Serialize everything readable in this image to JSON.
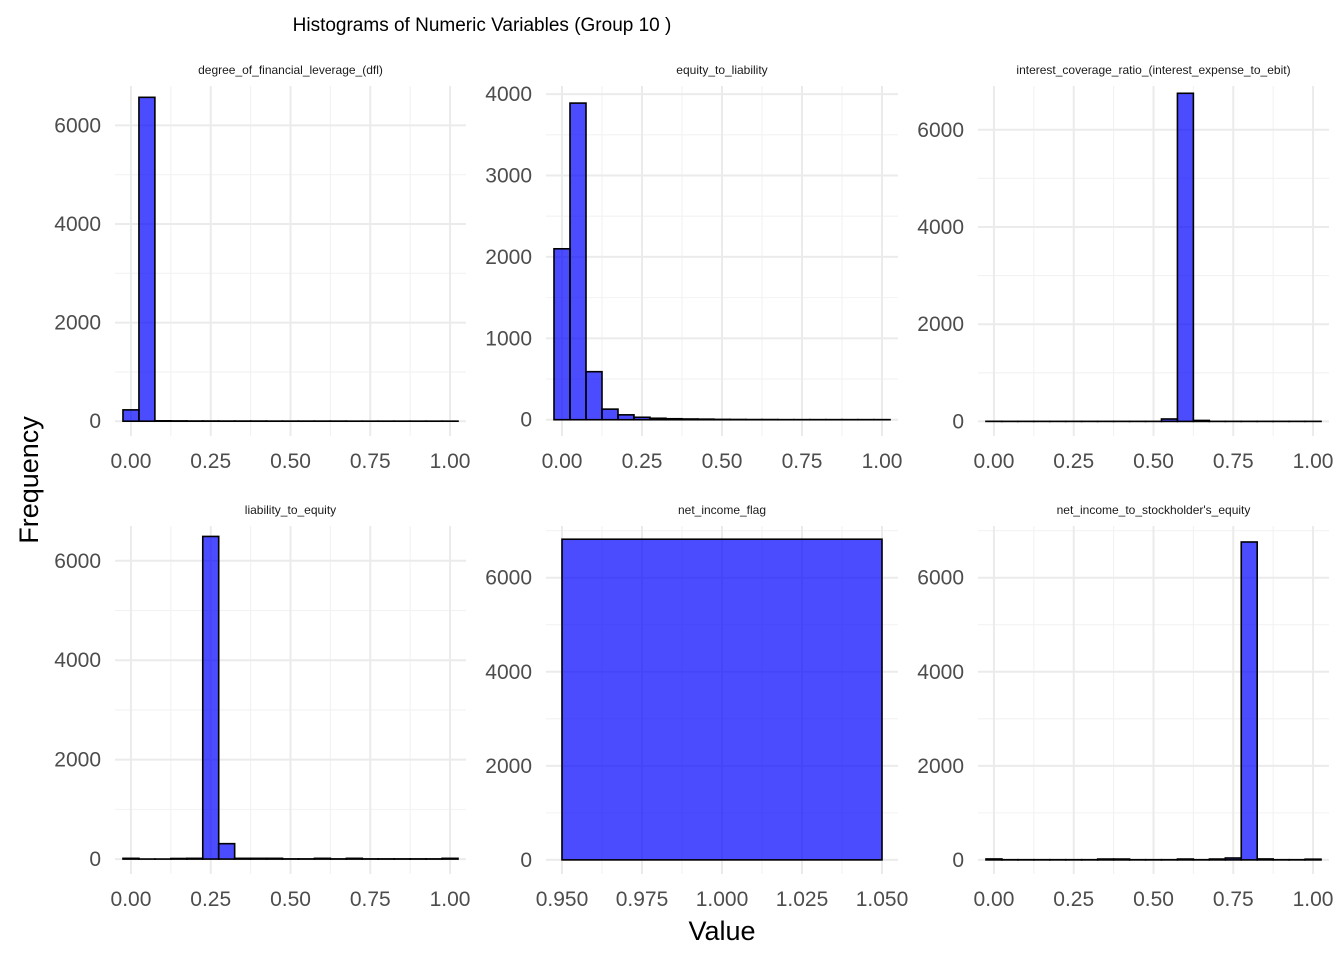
{
  "chart_data": {
    "type": "bar",
    "title": "Histograms of Numeric Variables (Group 10 )",
    "xlabel": "Value",
    "ylabel": "Frequency",
    "grid": true,
    "legend": "none",
    "bar_color": "#0000ff",
    "bar_opacity": 0.7,
    "bar_outline": "#000000",
    "panels": [
      {
        "name": "degree_of_financial_leverage_(dfl)",
        "bin_start": -0.025,
        "bin_width": 0.05,
        "counts": [
          230,
          6570,
          8,
          6,
          4,
          4,
          3,
          3,
          3,
          2,
          2,
          2,
          2,
          2,
          1,
          1,
          1,
          1,
          1,
          1,
          1
        ],
        "xlim": [
          -0.05,
          1.05
        ],
        "ylim": [
          -300,
          6800
        ],
        "xticks": [
          0,
          0.25,
          0.5,
          0.75,
          1
        ],
        "xtick_labels": [
          "0.00",
          "0.25",
          "0.50",
          "0.75",
          "1.00"
        ],
        "yticks": [
          0,
          2000,
          4000,
          6000
        ],
        "ytick_labels": [
          "0",
          "2000",
          "4000",
          "6000"
        ]
      },
      {
        "name": "equity_to_liability",
        "bin_start": -0.025,
        "bin_width": 0.05,
        "counts": [
          2100,
          3890,
          590,
          130,
          60,
          30,
          18,
          12,
          9,
          7,
          4,
          3,
          2,
          2,
          1,
          1,
          1,
          1,
          1,
          1,
          1
        ],
        "xlim": [
          -0.05,
          1.05
        ],
        "ylim": [
          -200,
          4100
        ],
        "xticks": [
          0,
          0.25,
          0.5,
          0.75,
          1
        ],
        "xtick_labels": [
          "0.00",
          "0.25",
          "0.50",
          "0.75",
          "1.00"
        ],
        "yticks": [
          0,
          1000,
          2000,
          3000,
          4000
        ],
        "ytick_labels": [
          "0",
          "1000",
          "2000",
          "3000",
          "4000"
        ]
      },
      {
        "name": "interest_coverage_ratio_(interest_expense_to_ebit)",
        "bin_start": -0.025,
        "bin_width": 0.05,
        "counts": [
          2,
          1,
          1,
          1,
          1,
          1,
          1,
          1,
          1,
          1,
          1,
          50,
          6750,
          20,
          1,
          1,
          1,
          1,
          1,
          1,
          1
        ],
        "xlim": [
          -0.05,
          1.05
        ],
        "ylim": [
          -300,
          6900
        ],
        "xticks": [
          0,
          0.25,
          0.5,
          0.75,
          1
        ],
        "xtick_labels": [
          "0.00",
          "0.25",
          "0.50",
          "0.75",
          "1.00"
        ],
        "yticks": [
          0,
          2000,
          4000,
          6000
        ],
        "ytick_labels": [
          "0",
          "2000",
          "4000",
          "6000"
        ]
      },
      {
        "name": "liability_to_equity",
        "bin_start": -0.025,
        "bin_width": 0.05,
        "counts": [
          15,
          1,
          1,
          12,
          15,
          6490,
          310,
          15,
          15,
          15,
          4,
          4,
          15,
          4,
          15,
          4,
          4,
          4,
          4,
          4,
          15
        ],
        "xlim": [
          -0.05,
          1.05
        ],
        "ylim": [
          -300,
          6700
        ],
        "xticks": [
          0,
          0.25,
          0.5,
          0.75,
          1
        ],
        "xtick_labels": [
          "0.00",
          "0.25",
          "0.50",
          "0.75",
          "1.00"
        ],
        "yticks": [
          0,
          2000,
          4000,
          6000
        ],
        "ytick_labels": [
          "0",
          "2000",
          "4000",
          "6000"
        ]
      },
      {
        "name": "net_income_flag",
        "bin_start": 0.95,
        "bin_width": 0.1,
        "counts": [
          6819
        ],
        "xlim": [
          0.945,
          1.055
        ],
        "ylim": [
          -300,
          7100
        ],
        "xticks": [
          0.95,
          0.975,
          1.0,
          1.025,
          1.05
        ],
        "xtick_labels": [
          "0.950",
          "0.975",
          "1.000",
          "1.025",
          "1.050"
        ],
        "yticks": [
          0,
          2000,
          4000,
          6000
        ],
        "ytick_labels": [
          "0",
          "2000",
          "4000",
          "6000"
        ]
      },
      {
        "name": "net_income_to_stockholder's_equity",
        "bin_start": -0.025,
        "bin_width": 0.05,
        "counts": [
          20,
          4,
          4,
          4,
          4,
          4,
          4,
          18,
          18,
          4,
          4,
          4,
          18,
          4,
          18,
          40,
          6760,
          20,
          4,
          4,
          15
        ],
        "xlim": [
          -0.05,
          1.05
        ],
        "ylim": [
          -300,
          7100
        ],
        "xticks": [
          0,
          0.25,
          0.5,
          0.75,
          1
        ],
        "xtick_labels": [
          "0.00",
          "0.25",
          "0.50",
          "0.75",
          "1.00"
        ],
        "yticks": [
          0,
          2000,
          4000,
          6000
        ],
        "ytick_labels": [
          "0",
          "2000",
          "4000",
          "6000"
        ]
      }
    ]
  }
}
